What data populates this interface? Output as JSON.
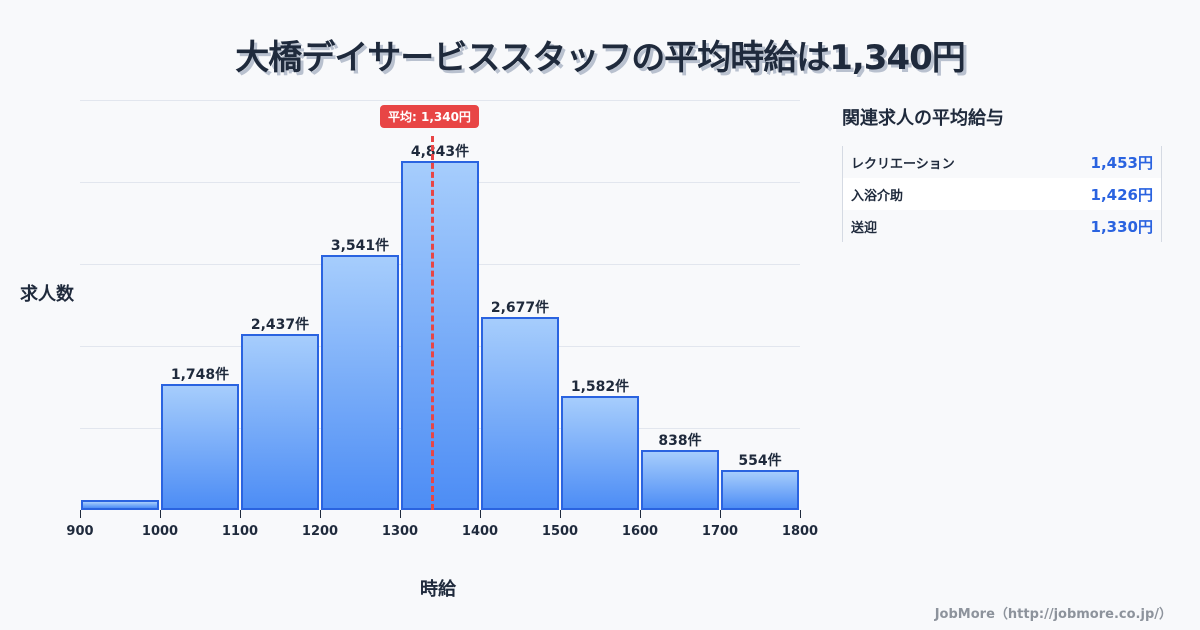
{
  "title": "大橋デイサービススタッフの平均時給は1,340円",
  "chart_data": {
    "type": "bar",
    "title": "大橋デイサービススタッフの平均時給は1,340円",
    "xlabel": "時給",
    "ylabel": "求人数",
    "categories": [
      "900-1000",
      "1000-1100",
      "1100-1200",
      "1200-1300",
      "1300-1400",
      "1400-1500",
      "1500-1600",
      "1600-1700",
      "1700-1800"
    ],
    "values": [
      140,
      1748,
      2437,
      3541,
      4843,
      2677,
      1582,
      838,
      554
    ],
    "labels": [
      "",
      "1,748件",
      "2,437件",
      "3,541件",
      "4,843件",
      "2,677件",
      "1,582件",
      "838件",
      "554件"
    ],
    "x_ticks": [
      "900",
      "1000",
      "1100",
      "1200",
      "1300",
      "1400",
      "1500",
      "1600",
      "1700",
      "1800"
    ],
    "xlim": [
      900,
      1800
    ],
    "ylim": [
      0,
      5690
    ],
    "grid": true,
    "average": {
      "value": 1340,
      "label": "平均: 1,340円"
    }
  },
  "side_panel": {
    "title": "関連求人の平均給与",
    "rows": [
      {
        "name": "レクリエーション",
        "value": "1,453円"
      },
      {
        "name": "入浴介助",
        "value": "1,426円"
      },
      {
        "name": "送迎",
        "value": "1,330円"
      }
    ]
  },
  "footer": "JobMore（http://jobmore.co.jp/）",
  "colors": {
    "bar_border": "#2a63e0",
    "bar_top": "#a6cdfc",
    "bar_bottom": "#4d8df5",
    "average": "#e84545",
    "value_text": "#2a63e0"
  }
}
